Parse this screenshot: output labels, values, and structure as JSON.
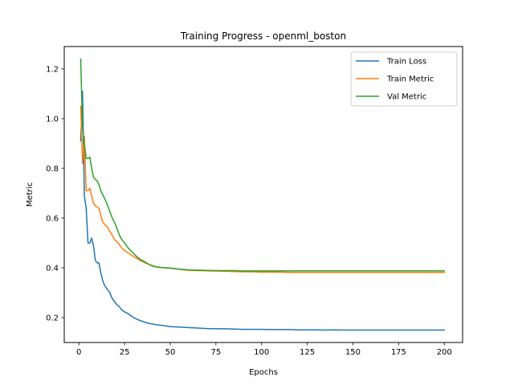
{
  "chart_data": {
    "type": "line",
    "title": "Training Progress - openml_boston",
    "xlabel": "Epochs",
    "ylabel": "Metric",
    "xlim": [
      -8,
      210
    ],
    "ylim": [
      0.1,
      1.29
    ],
    "xticks": [
      0,
      25,
      50,
      75,
      100,
      125,
      150,
      175,
      200
    ],
    "yticks": [
      0.2,
      0.4,
      0.6,
      0.8,
      1.0,
      1.2
    ],
    "ytick_labels": [
      "0.2",
      "0.4",
      "0.6",
      "0.8",
      "1.0",
      "1.2"
    ],
    "grid": false,
    "legend_position": "top-right",
    "series": [
      {
        "name": "Train Loss",
        "color": "#1f77b4",
        "x": [
          1,
          2,
          3,
          4,
          5,
          6,
          7,
          8,
          9,
          10,
          11,
          12,
          13,
          14,
          15,
          16,
          17,
          18,
          19,
          20,
          21,
          22,
          23,
          24,
          25,
          26,
          27,
          28,
          29,
          30,
          32,
          34,
          36,
          38,
          40,
          42,
          44,
          46,
          48,
          50,
          55,
          60,
          65,
          70,
          75,
          80,
          85,
          90,
          95,
          100,
          105,
          110,
          115,
          120,
          125,
          130,
          135,
          140,
          145,
          150,
          155,
          160,
          165,
          170,
          175,
          180,
          185,
          190,
          195,
          198,
          200
        ],
        "y": [
          0.91,
          1.11,
          0.69,
          0.64,
          0.5,
          0.5,
          0.52,
          0.49,
          0.43,
          0.42,
          0.42,
          0.38,
          0.35,
          0.33,
          0.32,
          0.31,
          0.3,
          0.28,
          0.27,
          0.26,
          0.25,
          0.245,
          0.235,
          0.228,
          0.223,
          0.22,
          0.215,
          0.21,
          0.205,
          0.2,
          0.193,
          0.187,
          0.182,
          0.177,
          0.175,
          0.172,
          0.17,
          0.168,
          0.166,
          0.164,
          0.162,
          0.16,
          0.158,
          0.156,
          0.155,
          0.155,
          0.154,
          0.153,
          0.153,
          0.153,
          0.152,
          0.152,
          0.152,
          0.151,
          0.151,
          0.151,
          0.15,
          0.151,
          0.15,
          0.15,
          0.15,
          0.15,
          0.15,
          0.15,
          0.15,
          0.15,
          0.15,
          0.15,
          0.15,
          0.15,
          0.15
        ]
      },
      {
        "name": "Train Metric",
        "color": "#ff7f0e",
        "x": [
          1,
          2,
          3,
          4,
          5,
          6,
          7,
          8,
          9,
          10,
          11,
          12,
          13,
          14,
          15,
          16,
          17,
          18,
          19,
          20,
          21,
          22,
          23,
          24,
          25,
          26,
          27,
          28,
          29,
          30,
          32,
          34,
          36,
          38,
          40,
          42,
          44,
          46,
          48,
          50,
          55,
          60,
          65,
          70,
          75,
          80,
          85,
          90,
          95,
          100,
          105,
          110,
          115,
          120,
          125,
          130,
          135,
          140,
          145,
          150,
          155,
          160,
          165,
          170,
          175,
          180,
          185,
          190,
          195,
          198,
          200
        ],
        "y": [
          1.05,
          0.82,
          0.93,
          0.71,
          0.71,
          0.72,
          0.69,
          0.66,
          0.65,
          0.645,
          0.64,
          0.61,
          0.585,
          0.575,
          0.57,
          0.56,
          0.545,
          0.535,
          0.52,
          0.51,
          0.505,
          0.495,
          0.485,
          0.475,
          0.47,
          0.465,
          0.46,
          0.455,
          0.45,
          0.445,
          0.437,
          0.428,
          0.421,
          0.415,
          0.41,
          0.405,
          0.403,
          0.401,
          0.4,
          0.399,
          0.394,
          0.39,
          0.389,
          0.388,
          0.387,
          0.386,
          0.385,
          0.384,
          0.384,
          0.383,
          0.383,
          0.383,
          0.382,
          0.382,
          0.382,
          0.382,
          0.382,
          0.382,
          0.382,
          0.382,
          0.382,
          0.382,
          0.382,
          0.382,
          0.382,
          0.382,
          0.382,
          0.382,
          0.382,
          0.382,
          0.382
        ]
      },
      {
        "name": "Val Metric",
        "color": "#2ca02c",
        "x": [
          1,
          2,
          3,
          4,
          5,
          6,
          7,
          8,
          9,
          10,
          11,
          12,
          13,
          14,
          15,
          16,
          17,
          18,
          19,
          20,
          21,
          22,
          23,
          24,
          25,
          26,
          27,
          28,
          29,
          30,
          32,
          34,
          36,
          38,
          40,
          42,
          44,
          46,
          48,
          50,
          55,
          60,
          65,
          70,
          75,
          80,
          85,
          90,
          95,
          100,
          105,
          110,
          115,
          120,
          125,
          130,
          135,
          140,
          145,
          150,
          155,
          160,
          165,
          170,
          175,
          180,
          185,
          190,
          195,
          198,
          200
        ],
        "y": [
          1.24,
          0.96,
          0.9,
          0.84,
          0.84,
          0.845,
          0.8,
          0.765,
          0.755,
          0.75,
          0.735,
          0.71,
          0.695,
          0.68,
          0.665,
          0.645,
          0.625,
          0.605,
          0.59,
          0.575,
          0.555,
          0.535,
          0.52,
          0.51,
          0.5,
          0.49,
          0.48,
          0.472,
          0.465,
          0.457,
          0.443,
          0.432,
          0.425,
          0.415,
          0.408,
          0.404,
          0.402,
          0.401,
          0.4,
          0.399,
          0.395,
          0.392,
          0.391,
          0.39,
          0.389,
          0.389,
          0.389,
          0.388,
          0.388,
          0.388,
          0.388,
          0.388,
          0.388,
          0.388,
          0.388,
          0.388,
          0.388,
          0.388,
          0.388,
          0.388,
          0.388,
          0.388,
          0.388,
          0.388,
          0.388,
          0.388,
          0.388,
          0.388,
          0.388,
          0.388,
          0.388
        ]
      }
    ]
  }
}
